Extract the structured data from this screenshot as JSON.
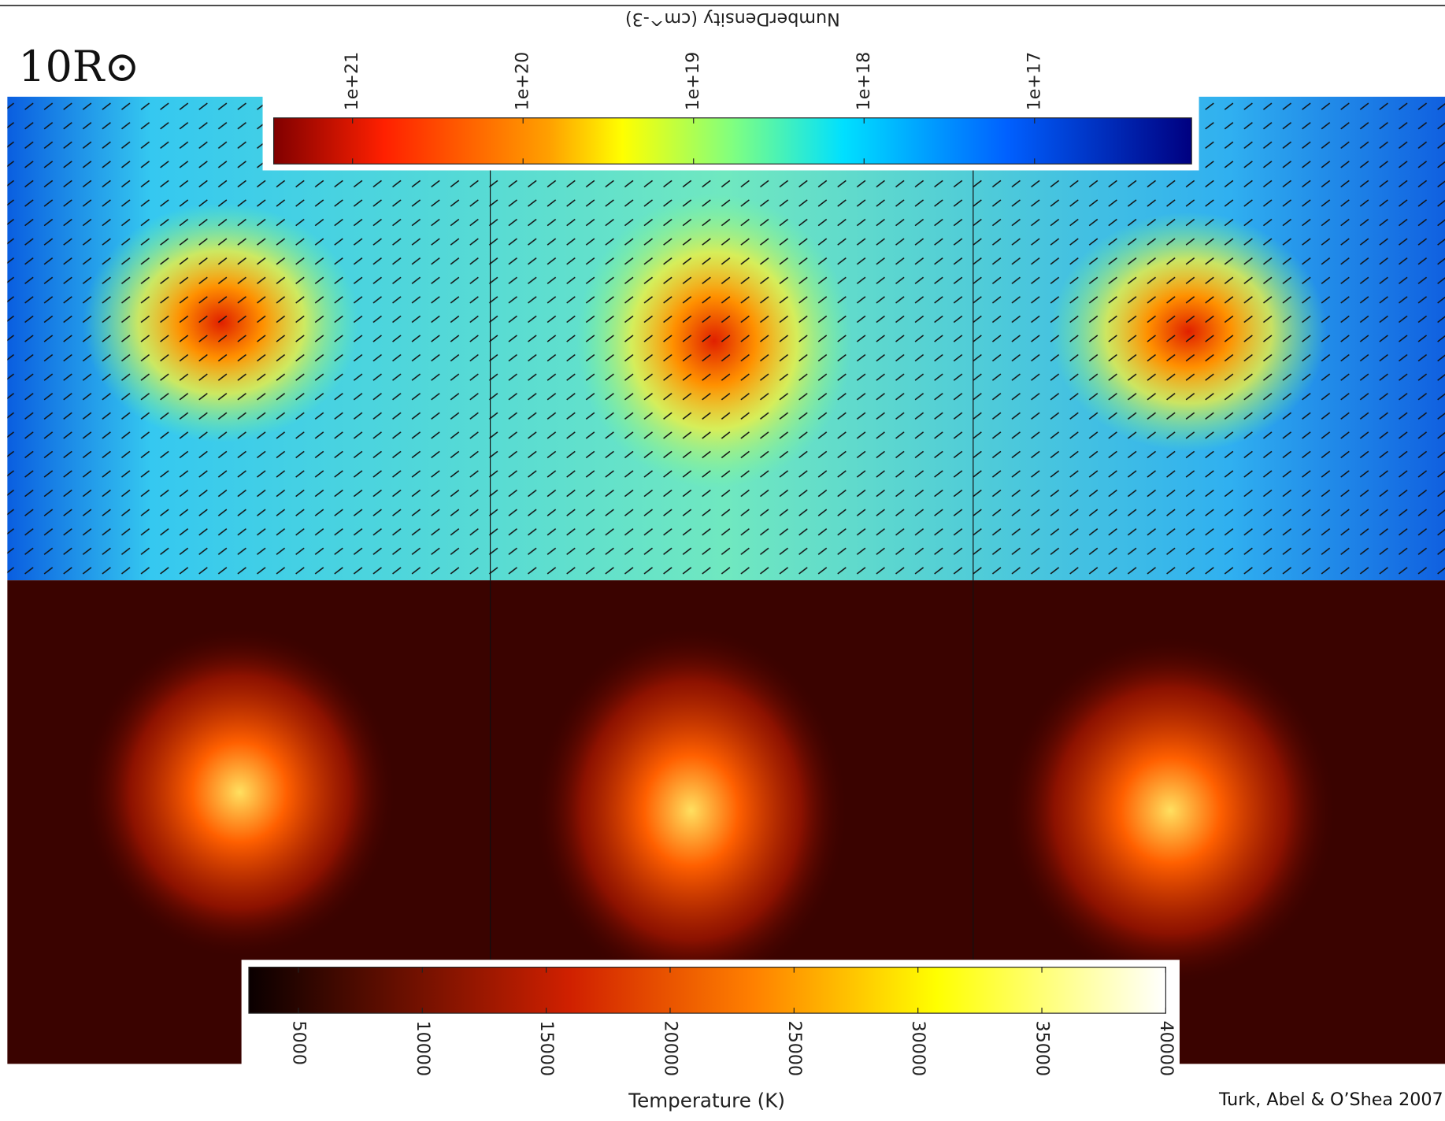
{
  "label": "10R⊙",
  "density_colorbar": {
    "title": "NumberDensity (cm^-3)",
    "log": true,
    "lim": [
      2.9e+21,
      1.2e+16
    ],
    "ticks": [
      {
        "value": 1e+21,
        "label": "1e+21"
      },
      {
        "value": 1e+20,
        "label": "1e+20"
      },
      {
        "value": 1e+19,
        "label": "1e+19"
      },
      {
        "value": 1e+18,
        "label": "1e+18"
      },
      {
        "value": 1e+17,
        "label": "1e+17"
      }
    ]
  },
  "temperature_colorbar": {
    "title": "Temperature (K)",
    "log": false,
    "lim": [
      3000,
      40000
    ],
    "ticks": [
      5000,
      10000,
      15000,
      20000,
      25000,
      30000,
      35000,
      40000
    ]
  },
  "credit": "Turk, Abel & O’Shea 2007"
}
